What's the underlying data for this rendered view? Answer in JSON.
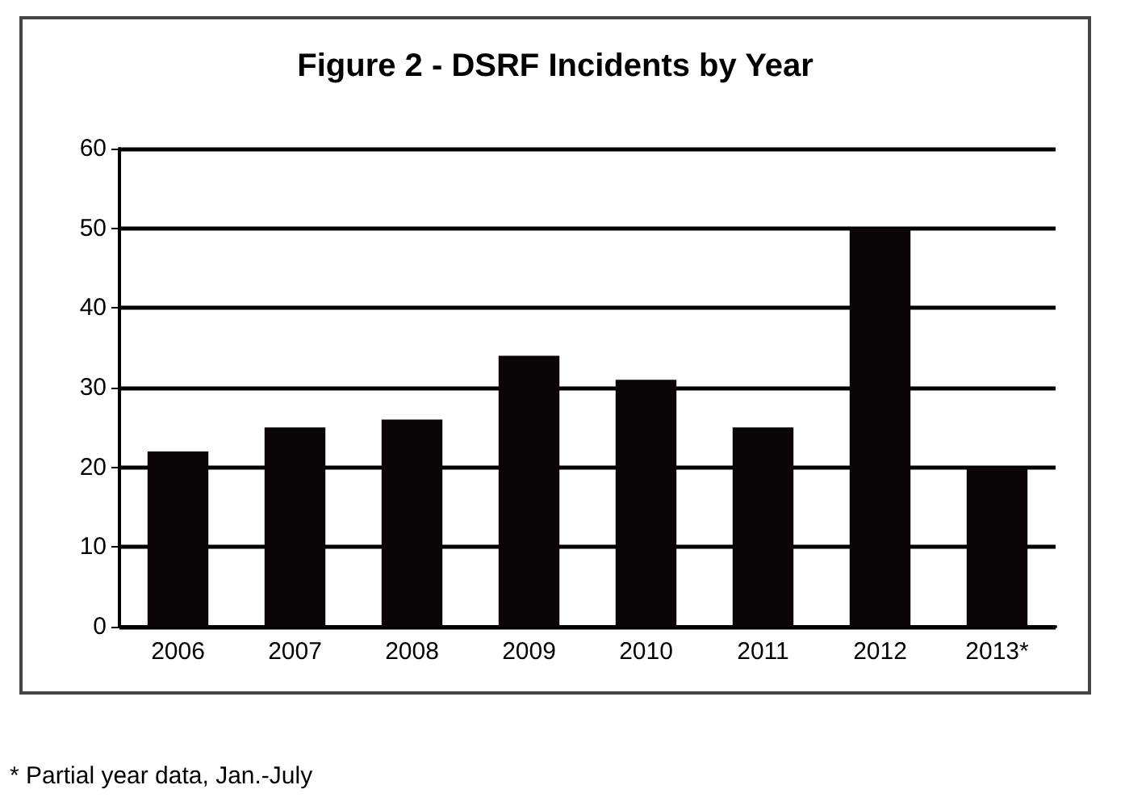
{
  "chart_data": {
    "type": "bar",
    "title": "Figure 2 - DSRF Incidents by Year",
    "categories": [
      "2006",
      "2007",
      "2008",
      "2009",
      "2010",
      "2011",
      "2012",
      "2013*"
    ],
    "values": [
      22,
      25,
      26,
      34,
      31,
      25,
      50,
      20
    ],
    "color": "#0a0506",
    "ylim": [
      0,
      60
    ],
    "yticks": [
      0,
      10,
      20,
      30,
      40,
      50,
      60
    ],
    "grid": "y",
    "annotations": [
      "* Partial year data, Jan.-July"
    ]
  }
}
